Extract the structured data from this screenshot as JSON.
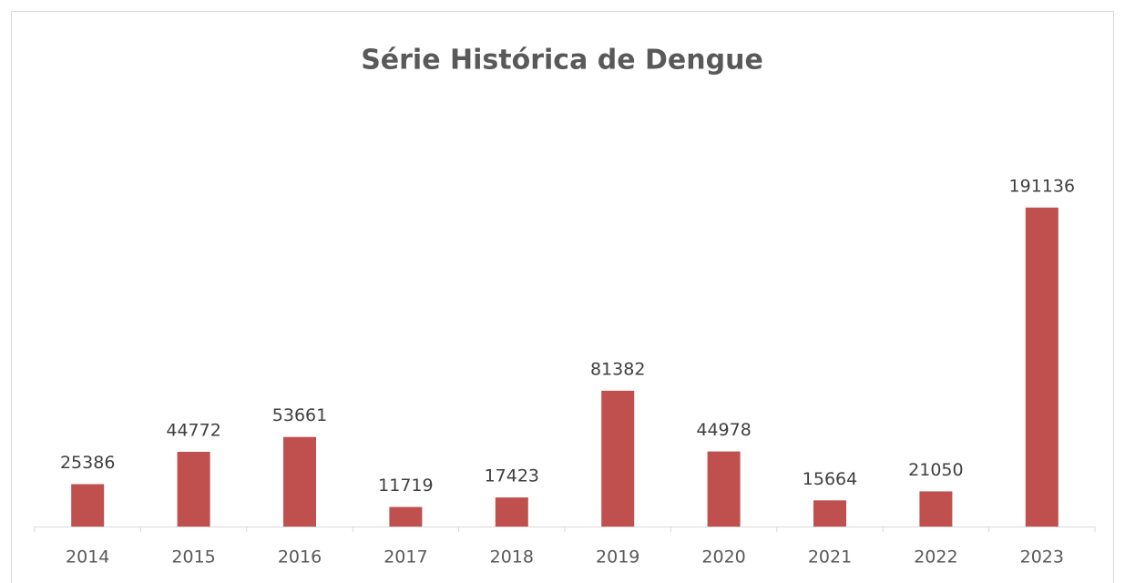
{
  "chart_data": {
    "type": "bar",
    "title": "Série Histórica de Dengue",
    "categories": [
      "2014",
      "2015",
      "2016",
      "2017",
      "2018",
      "2019",
      "2020",
      "2021",
      "2022",
      "2023"
    ],
    "values": [
      25386,
      44772,
      53661,
      11719,
      17423,
      81382,
      44978,
      15664,
      21050,
      191136
    ],
    "color": "#c0504d",
    "ylim": [
      0,
      250000
    ]
  }
}
